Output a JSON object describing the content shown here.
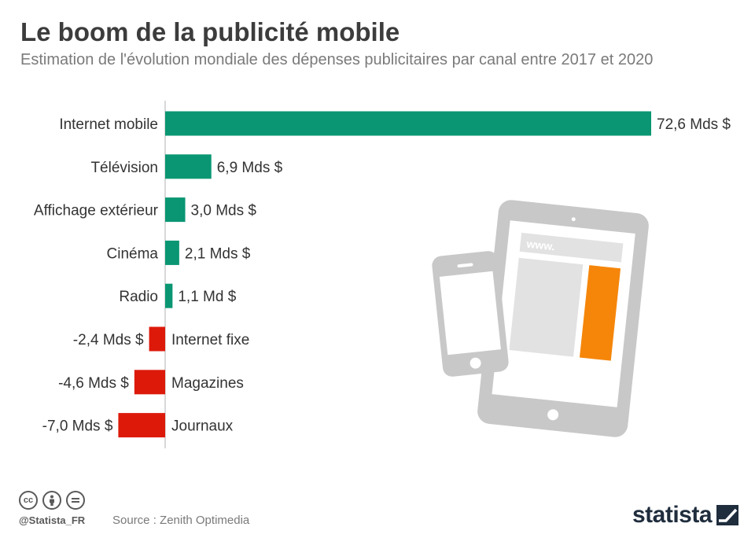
{
  "title": "Le boom de la publicité mobile",
  "subtitle": "Estimation de l'évolution mondiale des dépenses publicitaires par canal entre 2017 et 2020",
  "chart_data": {
    "type": "bar",
    "orientation": "horizontal",
    "unit": "Mds $",
    "categories": [
      "Internet mobile",
      "Télévision",
      "Affichage extérieur",
      "Cinéma",
      "Radio",
      "Internet fixe",
      "Magazines",
      "Journaux"
    ],
    "values": [
      72.6,
      6.9,
      3.0,
      2.1,
      1.1,
      -2.4,
      -4.6,
      -7.0
    ],
    "value_labels": [
      "72,6 Mds $",
      "6,9 Mds $",
      "3,0 Mds $",
      "2,1 Mds $",
      "1,1 Md $",
      "-2,4 Mds $",
      "-4,6 Mds $",
      "-7,0 Mds $"
    ],
    "colors": {
      "positive": "#0a9673",
      "negative": "#dd1a0a"
    },
    "grid": false,
    "legend": "none"
  },
  "illustration": {
    "url_text": "www.",
    "accent_color": "#f5860a",
    "device_color": "#c8c8c8"
  },
  "footer": {
    "handle": "@Statista_FR",
    "source": "Source : Zenith Optimedia",
    "brand": "statista",
    "license_icons": [
      "cc-icon",
      "attribution-icon",
      "no-derivatives-icon"
    ]
  }
}
